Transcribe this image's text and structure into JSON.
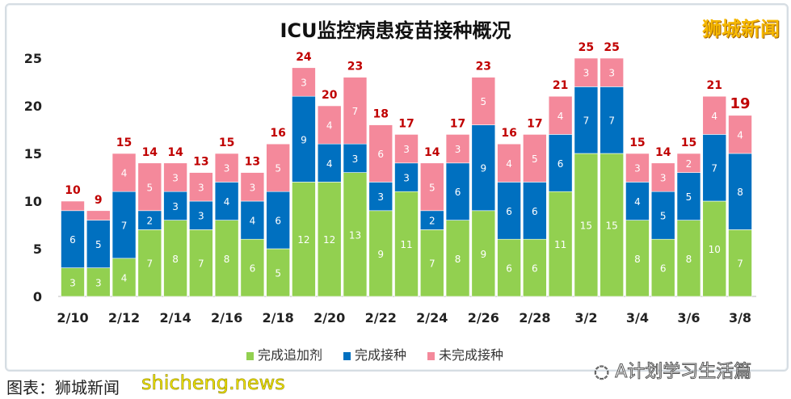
{
  "chart_data": {
    "type": "bar",
    "stacked": true,
    "title": "ICU监控病患疫苗接种概况",
    "categories": [
      "2/10",
      "2/11",
      "2/12",
      "2/13",
      "2/14",
      "2/15",
      "2/16",
      "2/17",
      "2/18",
      "2/19",
      "2/20",
      "2/21",
      "2/22",
      "2/23",
      "2/24",
      "2/25",
      "2/26",
      "2/27",
      "2/28",
      "3/1",
      "3/2",
      "3/3",
      "3/4",
      "3/5",
      "3/6",
      "3/7",
      "3/8"
    ],
    "tick_labels": [
      "2/10",
      "2/12",
      "2/14",
      "2/16",
      "2/18",
      "2/20",
      "2/22",
      "2/24",
      "2/26",
      "2/28",
      "3/2",
      "3/4",
      "3/6",
      "3/8"
    ],
    "series": [
      {
        "name": "完成追加剂",
        "color": "#92d050",
        "values": [
          3,
          3,
          4,
          7,
          8,
          7,
          8,
          6,
          5,
          12,
          12,
          13,
          9,
          11,
          7,
          8,
          9,
          6,
          6,
          11,
          15,
          15,
          8,
          6,
          8,
          10,
          7
        ]
      },
      {
        "name": "完成接种",
        "color": "#0070c0",
        "values": [
          6,
          5,
          7,
          2,
          3,
          3,
          4,
          4,
          6,
          9,
          4,
          3,
          3,
          3,
          2,
          6,
          9,
          6,
          6,
          6,
          7,
          7,
          4,
          5,
          5,
          7,
          8
        ]
      },
      {
        "name": "未完成接种",
        "color": "#f4899b",
        "values": [
          1,
          1,
          4,
          5,
          3,
          3,
          3,
          3,
          5,
          3,
          4,
          7,
          6,
          3,
          5,
          3,
          5,
          4,
          5,
          4,
          3,
          3,
          3,
          3,
          2,
          4,
          4
        ]
      }
    ],
    "totals": [
      10,
      9,
      15,
      14,
      14,
      13,
      15,
      13,
      16,
      24,
      20,
      23,
      18,
      17,
      14,
      17,
      23,
      16,
      17,
      21,
      25,
      25,
      15,
      14,
      15,
      21,
      19
    ],
    "total_label_color": "#c00000",
    "ylim": [
      0,
      25
    ],
    "yticks": [
      0,
      5,
      10,
      15,
      20,
      25
    ],
    "grid": false,
    "legend": "bottom"
  },
  "watermark": "狮城新闻",
  "wechat_credit": "A计划学习生活篇",
  "footer_source": "图表：狮城新闻",
  "footer_overlay": "shicheng.news"
}
